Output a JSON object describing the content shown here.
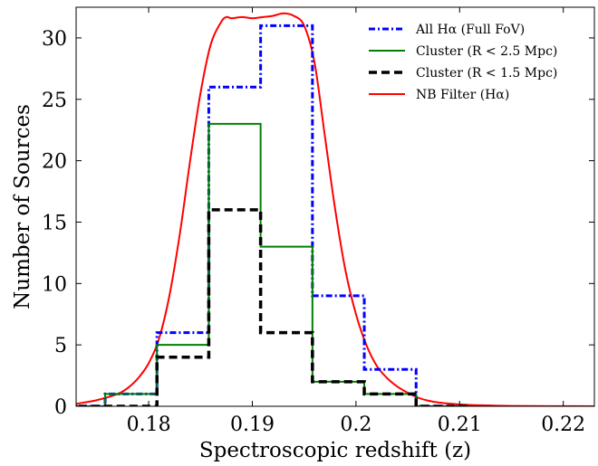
{
  "chart_data": {
    "type": "line",
    "xlabel": "Spectroscopic redshift (z)",
    "ylabel": "Number of Sources",
    "xlim": [
      0.173,
      0.223
    ],
    "ylim": [
      0,
      32.5
    ],
    "xticks": [
      0.18,
      0.19,
      0.2,
      0.21,
      0.22
    ],
    "xtick_labels": [
      "0.18",
      "0.19",
      "0.2",
      "0.21",
      "0.22"
    ],
    "yticks": [
      0,
      5,
      10,
      15,
      20,
      25,
      30
    ],
    "ytick_labels": [
      "0",
      "5",
      "10",
      "15",
      "20",
      "25",
      "30"
    ],
    "grid": false,
    "legend_position": "top-right",
    "bin_edges": [
      0.1708,
      0.1758,
      0.1808,
      0.1858,
      0.1908,
      0.1958,
      0.2008,
      0.2058,
      0.2108
    ],
    "series": [
      {
        "name": "All Hα (Full FoV)",
        "kind": "step",
        "color": "#0000ff",
        "style": "dashdot",
        "values": [
          0,
          1,
          6,
          26,
          31,
          9,
          3,
          0
        ]
      },
      {
        "name": "Cluster (R < 2.5 Mpc)",
        "kind": "step",
        "color": "#008000",
        "style": "solid",
        "values": [
          0,
          1,
          5,
          23,
          13,
          2,
          1,
          0
        ]
      },
      {
        "name": "Cluster (R < 1.5 Mpc)",
        "kind": "step",
        "color": "#000000",
        "style": "dashed",
        "values": [
          0,
          0,
          4,
          16,
          6,
          2,
          1,
          0
        ]
      },
      {
        "name": "NB Filter (Hα)",
        "kind": "curve",
        "color": "#ff0000",
        "style": "solid",
        "x": [
          0.173,
          0.175,
          0.177,
          0.178,
          0.179,
          0.18,
          0.181,
          0.182,
          0.183,
          0.184,
          0.185,
          0.186,
          0.187,
          0.1875,
          0.188,
          0.189,
          0.19,
          0.191,
          0.192,
          0.193,
          0.194,
          0.195,
          0.196,
          0.197,
          0.198,
          0.199,
          0.2,
          0.201,
          0.202,
          0.203,
          0.204,
          0.205,
          0.206,
          0.207,
          0.208,
          0.21,
          0.212,
          0.215,
          0.223
        ],
        "y": [
          0.2,
          0.5,
          1.0,
          1.5,
          2.3,
          3.5,
          5.5,
          9.0,
          14.0,
          20.0,
          25.5,
          29.5,
          31.3,
          31.7,
          31.6,
          31.7,
          31.6,
          31.7,
          31.8,
          32.0,
          31.8,
          31.0,
          28.0,
          22.0,
          16.0,
          11.0,
          7.5,
          5.0,
          3.3,
          2.3,
          1.6,
          1.1,
          0.7,
          0.45,
          0.3,
          0.15,
          0.08,
          0.03,
          0.0
        ]
      }
    ]
  }
}
